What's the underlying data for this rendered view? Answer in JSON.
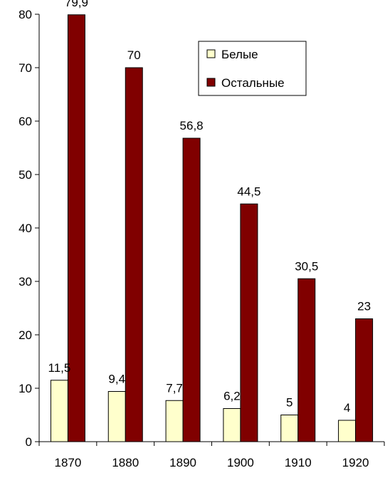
{
  "chart_data": {
    "type": "bar",
    "categories": [
      "1870",
      "1880",
      "1890",
      "1900",
      "1910",
      "1920"
    ],
    "series": [
      {
        "name": "Белые",
        "color": "#FFFFCC",
        "values": [
          11.5,
          9.4,
          7.7,
          6.2,
          5,
          4
        ],
        "labels": [
          "11,5",
          "9,4",
          "7,7",
          "6,2",
          "5",
          "4"
        ]
      },
      {
        "name": "Остальные",
        "color": "#800000",
        "values": [
          79.9,
          70,
          56.8,
          44.5,
          30.5,
          23
        ],
        "labels": [
          "79,9",
          "70",
          "56,8",
          "44,5",
          "30,5",
          "23"
        ]
      }
    ],
    "y_ticks": [
      "0",
      "10",
      "20",
      "30",
      "40",
      "50",
      "60",
      "70",
      "80"
    ],
    "ylim": [
      0,
      80
    ],
    "title": "",
    "xlabel": "",
    "ylabel": "",
    "grid": false,
    "legend": {
      "placement": "top-right"
    }
  }
}
